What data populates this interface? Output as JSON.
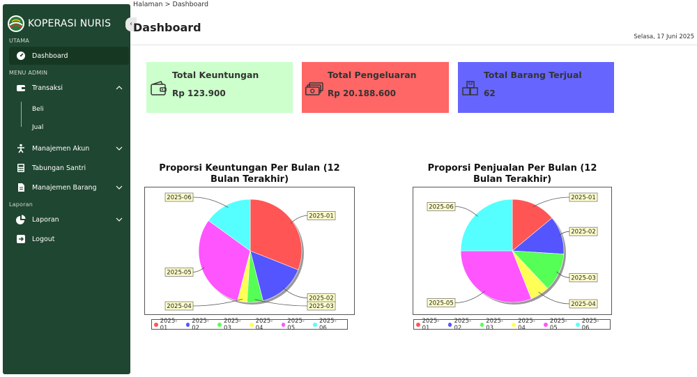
{
  "sidebar": {
    "brand": "KOPERASI NURIS",
    "sections": {
      "utama": "UTAMA",
      "admin": "MENU ADMIN",
      "laporan": "Laporan"
    },
    "items": {
      "dashboard": "Dashboard",
      "transaksi": "Transaksi",
      "beli": "Beli",
      "jual": "Jual",
      "manajemen_akun": "Manajemen Akun",
      "tabungan": "Tabungan Santri",
      "manajemen_barang": "Manajemen Barang",
      "laporan": "Laporan",
      "logout": "Logout"
    },
    "icons": [
      "dashboard-gauge-icon",
      "wallet-icon",
      "user-walk-icon",
      "calculator-icon",
      "document-icon",
      "pie-icon",
      "logout-icon",
      "chevron-up-icon",
      "chevron-down-icon",
      "collapse-icon"
    ]
  },
  "header": {
    "breadcrumb": "Halaman > Dashboard",
    "title": "Dashboard",
    "date": "Selasa, 17 Juni 2025"
  },
  "cards": [
    {
      "title": "Total Keuntungan",
      "value": "Rp 123.900",
      "color": "#ccffcc",
      "icon": "wallet-icon"
    },
    {
      "title": "Total Pengeluaran",
      "value": "Rp 20.188.600",
      "color": "#ff6666",
      "icon": "money-icon"
    },
    {
      "title": "Total Barang Terjual",
      "value": "62",
      "color": "#6666ff",
      "icon": "boxes-icon"
    }
  ],
  "colors": [
    "#ff5555",
    "#5555ff",
    "#55ff55",
    "#ffff55",
    "#ff55ff",
    "#55ffff"
  ],
  "chart_data": [
    {
      "type": "pie",
      "title": "Proporsi Keuntungan Per Bulan (12 Bulan Terakhir)",
      "title_lines": [
        "Proporsi Keuntungan Per Bulan (12",
        "Bulan Terakhir)"
      ],
      "categories": [
        "2025-01",
        "2025-02",
        "2025-03",
        "2025-04",
        "2025-05",
        "2025-06"
      ],
      "values": [
        31,
        15,
        5,
        3,
        31,
        15
      ],
      "legend": "bottom"
    },
    {
      "type": "pie",
      "title": "Proporsi Penjualan Per Bulan (12 Bulan Terakhir)",
      "title_lines": [
        "Proporsi Penjualan Per Bulan (12",
        "Bulan Terakhir)"
      ],
      "categories": [
        "2025-01",
        "2025-02",
        "2025-03",
        "2025-04",
        "2025-05",
        "2025-06"
      ],
      "values": [
        14,
        12,
        12,
        6,
        31,
        25
      ],
      "legend": "bottom"
    }
  ]
}
